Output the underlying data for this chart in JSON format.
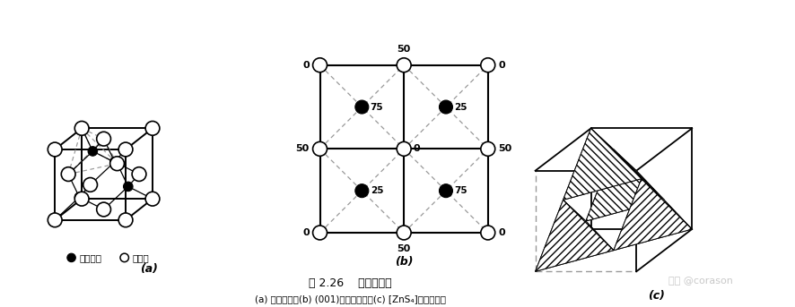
{
  "title": "图 2.26    闪锡矿结构",
  "subtitle": "(a) 晶胞结构；(b) (001)面上的投影；(c) [ZnS₄]分布及连接",
  "label_a": "(a)",
  "label_b": "(b)",
  "label_c": "(c)",
  "legend_cation": "阳离子",
  "legend_anion": "阴离子",
  "watermark": "知乎 @corason",
  "bg_color": "#ffffff",
  "line_color": "#000000",
  "dashed_color": "#999999"
}
